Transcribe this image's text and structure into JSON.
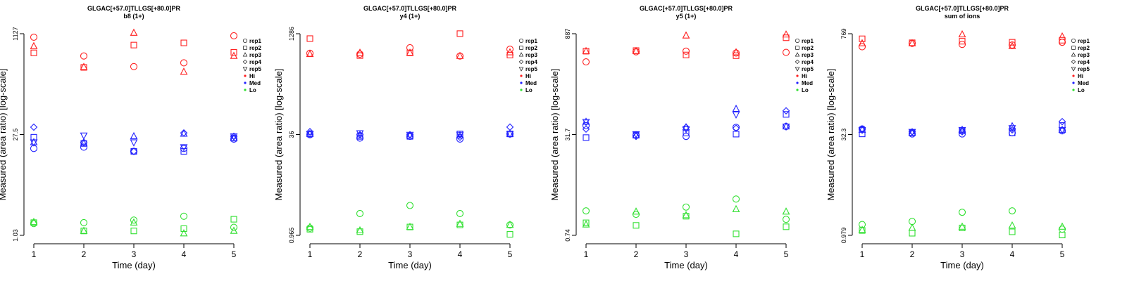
{
  "figure": {
    "colors": {
      "Hi": "#ff2020",
      "Med": "#2020ff",
      "Lo": "#30e030",
      "axis": "#000000"
    },
    "legend": [
      {
        "label": "rep1",
        "kind": "marker",
        "shape": "circle"
      },
      {
        "label": "rep2",
        "kind": "marker",
        "shape": "square"
      },
      {
        "label": "rep3",
        "kind": "marker",
        "shape": "triangle"
      },
      {
        "label": "rep4",
        "kind": "marker",
        "shape": "diamond"
      },
      {
        "label": "rep5",
        "kind": "marker",
        "shape": "triangle-down"
      },
      {
        "label": "Hi",
        "kind": "dot",
        "color": "#ff2020"
      },
      {
        "label": "Med",
        "kind": "dot",
        "color": "#2020ff"
      },
      {
        "label": "Lo",
        "kind": "dot",
        "color": "#30e030"
      }
    ]
  },
  "chart_data": [
    {
      "type": "scatter",
      "title": "GLGAC[+57.0]TLLGS[+80.0]PR",
      "subtitle": "b8 (1+)",
      "xlabel": "Time (day)",
      "ylabel": "Measured (area ratio) [log-scale]",
      "x_ticks": [
        "1",
        "2",
        "3",
        "4",
        "5"
      ],
      "y_tick_labels": [
        "1.03",
        "27.5",
        "1127"
      ],
      "y_scale": "log",
      "ylim": [
        1.03,
        1127
      ],
      "grid": false,
      "legend_position": "right",
      "series": [
        {
          "name": "rep1",
          "group": "Hi",
          "values": [
            1000,
            520,
            360,
            410,
            1050
          ]
        },
        {
          "name": "rep2",
          "group": "Hi",
          "values": [
            580,
            350,
            760,
            820,
            590
          ]
        },
        {
          "name": "rep3",
          "group": "Hi",
          "values": [
            730,
            355,
            1160,
            300,
            520
          ]
        },
        {
          "name": "rep1",
          "group": "Med",
          "values": [
            21,
            22,
            19,
            21,
            29
          ]
        },
        {
          "name": "rep2",
          "group": "Med",
          "values": [
            31,
            25,
            19,
            19,
            30
          ]
        },
        {
          "name": "rep3",
          "group": "Med",
          "values": [
            26,
            25,
            32,
            35,
            30
          ]
        },
        {
          "name": "rep4",
          "group": "Med",
          "values": [
            44,
            26,
            19,
            36,
            32
          ]
        },
        {
          "name": "rep5",
          "group": "Med",
          "values": [
            26,
            33,
            26,
            22,
            32
          ]
        },
        {
          "name": "rep1",
          "group": "Lo",
          "values": [
            1.55,
            1.6,
            1.75,
            2.0,
            1.36
          ]
        },
        {
          "name": "rep2",
          "group": "Lo",
          "values": [
            1.6,
            1.2,
            1.2,
            1.3,
            1.8
          ]
        },
        {
          "name": "rep3",
          "group": "Lo",
          "values": [
            1.63,
            1.2,
            1.6,
            1.1,
            1.2
          ]
        }
      ]
    },
    {
      "type": "scatter",
      "title": "GLGAC[+57.0]TLLGS[+80.0]PR",
      "subtitle": "y4 (1+)",
      "xlabel": "Time (day)",
      "ylabel": "Measured (area ratio) [log-scale]",
      "x_ticks": [
        "1",
        "2",
        "3",
        "4",
        "5"
      ],
      "y_tick_labels": [
        "0.965",
        "36",
        "1286"
      ],
      "y_scale": "log",
      "ylim": [
        0.965,
        1286
      ],
      "grid": false,
      "legend_position": "right",
      "series": [
        {
          "name": "rep1",
          "group": "Hi",
          "values": [
            640,
            620,
            780,
            580,
            740
          ]
        },
        {
          "name": "rep2",
          "group": "Hi",
          "values": [
            1080,
            590,
            650,
            1290,
            600
          ]
        },
        {
          "name": "rep3",
          "group": "Hi",
          "values": [
            620,
            650,
            650,
            580,
            660
          ]
        },
        {
          "name": "rep1",
          "group": "Med",
          "values": [
            35,
            31,
            33,
            30,
            36
          ]
        },
        {
          "name": "rep2",
          "group": "Med",
          "values": [
            36,
            33,
            33,
            36,
            36
          ]
        },
        {
          "name": "rep3",
          "group": "Med",
          "values": [
            36,
            34,
            34,
            34,
            36
          ]
        },
        {
          "name": "rep4",
          "group": "Med",
          "values": [
            39,
            35,
            35,
            32,
            46
          ]
        },
        {
          "name": "rep5",
          "group": "Med",
          "values": [
            36,
            37,
            35,
            35,
            36
          ]
        },
        {
          "name": "rep1",
          "group": "Lo",
          "values": [
            1.25,
            2.1,
            2.8,
            2.1,
            1.4
          ]
        },
        {
          "name": "rep2",
          "group": "Lo",
          "values": [
            1.2,
            1.1,
            1.3,
            1.4,
            1.0
          ]
        },
        {
          "name": "rep3",
          "group": "Lo",
          "values": [
            1.3,
            1.15,
            1.3,
            1.45,
            1.4
          ]
        }
      ]
    },
    {
      "type": "scatter",
      "title": "GLGAC[+57.0]TLLGS[+80.0]PR",
      "subtitle": "y5 (1+)",
      "xlabel": "Time (day)",
      "ylabel": "Measured (area ratio) [log-scale]",
      "x_ticks": [
        "1",
        "2",
        "3",
        "4",
        "5"
      ],
      "y_tick_labels": [
        "0.74",
        "31.7",
        "887"
      ],
      "y_scale": "log",
      "ylim": [
        0.74,
        887
      ],
      "grid": false,
      "legend_position": "right",
      "series": [
        {
          "name": "rep1",
          "group": "Hi",
          "values": [
            330,
            470,
            480,
            450,
            460
          ]
        },
        {
          "name": "rep2",
          "group": "Hi",
          "values": [
            480,
            490,
            420,
            410,
            770
          ]
        },
        {
          "name": "rep3",
          "group": "Hi",
          "values": [
            480,
            480,
            830,
            460,
            860
          ]
        },
        {
          "name": "rep1",
          "group": "Med",
          "values": [
            35,
            25,
            24,
            33,
            34
          ]
        },
        {
          "name": "rep2",
          "group": "Med",
          "values": [
            23,
            25,
            27,
            26,
            52
          ]
        },
        {
          "name": "rep3",
          "group": "Med",
          "values": [
            40,
            25,
            33,
            63,
            34
          ]
        },
        {
          "name": "rep4",
          "group": "Med",
          "values": [
            31,
            24,
            33,
            32,
            59
          ]
        },
        {
          "name": "rep5",
          "group": "Med",
          "values": [
            40,
            26,
            31,
            52,
            34
          ]
        },
        {
          "name": "rep1",
          "group": "Lo",
          "values": [
            1.75,
            1.55,
            2.0,
            2.65,
            1.3
          ]
        },
        {
          "name": "rep2",
          "group": "Lo",
          "values": [
            1.15,
            1.05,
            1.45,
            0.78,
            1.0
          ]
        },
        {
          "name": "rep3",
          "group": "Lo",
          "values": [
            1.08,
            1.7,
            1.5,
            1.85,
            1.7
          ]
        }
      ]
    },
    {
      "type": "scatter",
      "title": "GLGAC[+57.0]TLLGS[+80.0]PR",
      "subtitle": "sum of ions",
      "xlabel": "Time (day)",
      "ylabel": "Measured (area ratio) [log-scale]",
      "x_ticks": [
        "1",
        "2",
        "3",
        "4",
        "5"
      ],
      "y_tick_labels": [
        "0.979",
        "32.3",
        "769"
      ],
      "y_scale": "log",
      "ylim": [
        0.979,
        769
      ],
      "grid": false,
      "legend_position": "right",
      "series": [
        {
          "name": "rep1",
          "group": "Hi",
          "values": [
            500,
            560,
            540,
            530,
            580
          ]
        },
        {
          "name": "rep2",
          "group": "Hi",
          "values": [
            650,
            570,
            600,
            580,
            620
          ]
        },
        {
          "name": "rep3",
          "group": "Hi",
          "values": [
            560,
            560,
            750,
            510,
            700
          ]
        },
        {
          "name": "rep1",
          "group": "Med",
          "values": [
            33,
            28,
            28,
            29,
            31
          ]
        },
        {
          "name": "rep2",
          "group": "Med",
          "values": [
            28,
            29,
            31,
            29,
            37
          ]
        },
        {
          "name": "rep3",
          "group": "Med",
          "values": [
            32,
            29,
            32,
            36,
            32
          ]
        },
        {
          "name": "rep4",
          "group": "Med",
          "values": [
            33,
            30,
            30,
            32,
            42
          ]
        },
        {
          "name": "rep5",
          "group": "Med",
          "values": [
            32,
            30,
            32,
            34,
            32
          ]
        },
        {
          "name": "rep1",
          "group": "Lo",
          "values": [
            1.4,
            1.55,
            2.1,
            2.2,
            1.2
          ]
        },
        {
          "name": "rep2",
          "group": "Lo",
          "values": [
            1.15,
            1.05,
            1.25,
            1.1,
            0.99
          ]
        },
        {
          "name": "rep3",
          "group": "Lo",
          "values": [
            1.17,
            1.25,
            1.3,
            1.35,
            1.3
          ]
        }
      ]
    }
  ]
}
